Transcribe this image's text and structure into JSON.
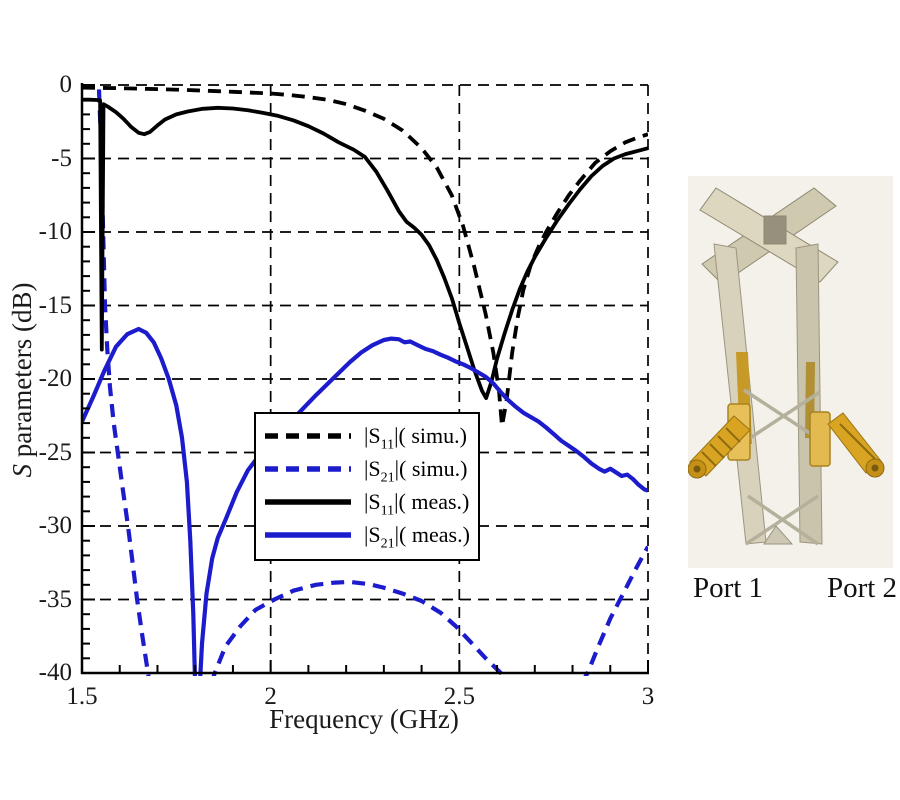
{
  "chart_data": {
    "type": "line",
    "xlabel": "Frequency (GHz)",
    "ylabel_italic": "S",
    "ylabel_rest": " parameters (dB)",
    "xlim": [
      1.5,
      3.0
    ],
    "ylim": [
      -40,
      0
    ],
    "grid": true,
    "legend_position": "lower-left-inside",
    "x_ticks": {
      "values": [
        1.5,
        2.0,
        2.5,
        3.0
      ],
      "labels": [
        "1.5",
        "2",
        "2.5",
        "3"
      ]
    },
    "y_ticks": {
      "values": [
        0,
        -5,
        -10,
        -15,
        -20,
        -25,
        -30,
        -35,
        -40
      ],
      "labels": [
        "0",
        "-5",
        "-10",
        "-15",
        "-20",
        "-25",
        "-30",
        "-35",
        "-40"
      ]
    },
    "x_minor_step": 0.1,
    "y_minor_step": 1,
    "series": [
      {
        "name": "S11-simulated",
        "legend_pre": "|S",
        "legend_sub": "11",
        "legend_post": "|( simu.)",
        "color": "#000000",
        "style": "dashed",
        "points": [
          [
            1.5,
            -0.18
          ],
          [
            1.6,
            -0.22
          ],
          [
            1.7,
            -0.28
          ],
          [
            1.8,
            -0.36
          ],
          [
            1.9,
            -0.46
          ],
          [
            2.0,
            -0.58
          ],
          [
            2.05,
            -0.68
          ],
          [
            2.1,
            -0.82
          ],
          [
            2.15,
            -1.0
          ],
          [
            2.2,
            -1.3
          ],
          [
            2.25,
            -1.75
          ],
          [
            2.3,
            -2.3
          ],
          [
            2.35,
            -3.1
          ],
          [
            2.4,
            -4.3
          ],
          [
            2.44,
            -5.6
          ],
          [
            2.48,
            -7.5
          ],
          [
            2.51,
            -9.6
          ],
          [
            2.54,
            -12.4
          ],
          [
            2.57,
            -15.6
          ],
          [
            2.59,
            -18.2
          ],
          [
            2.605,
            -20.8
          ],
          [
            2.613,
            -23.2
          ],
          [
            2.625,
            -21.5
          ],
          [
            2.64,
            -18.2
          ],
          [
            2.655,
            -15.8
          ],
          [
            2.67,
            -13.9
          ],
          [
            2.69,
            -12.2
          ],
          [
            2.71,
            -11.0
          ],
          [
            2.73,
            -10.0
          ],
          [
            2.76,
            -8.7
          ],
          [
            2.79,
            -7.5
          ],
          [
            2.82,
            -6.5
          ],
          [
            2.86,
            -5.3
          ],
          [
            2.9,
            -4.5
          ],
          [
            2.94,
            -3.9
          ],
          [
            2.97,
            -3.6
          ],
          [
            3.0,
            -3.35
          ]
        ]
      },
      {
        "name": "S21-simulated",
        "legend_pre": "|S",
        "legend_sub": "21",
        "legend_post": "|( simu.)",
        "color": "#1c1ccd",
        "style": "dashed",
        "points": [
          [
            1.545,
            -0.3
          ],
          [
            1.549,
            -3
          ],
          [
            1.553,
            -7
          ],
          [
            1.557,
            -11
          ],
          [
            1.561,
            -15
          ],
          [
            1.567,
            -18
          ],
          [
            1.574,
            -20.5
          ],
          [
            1.584,
            -23
          ],
          [
            1.595,
            -25
          ],
          [
            1.608,
            -27.5
          ],
          [
            1.622,
            -30
          ],
          [
            1.634,
            -32.5
          ],
          [
            1.646,
            -35
          ],
          [
            1.66,
            -37.5
          ],
          [
            1.675,
            -40
          ],
          [
            1.695,
            -43.5
          ],
          [
            1.73,
            -47
          ],
          [
            1.77,
            -46.5
          ],
          [
            1.81,
            -43
          ],
          [
            1.852,
            -40
          ],
          [
            1.88,
            -38.2
          ],
          [
            1.92,
            -36.8
          ],
          [
            1.96,
            -35.7
          ],
          [
            2.01,
            -35.0
          ],
          [
            2.06,
            -34.4
          ],
          [
            2.12,
            -34.0
          ],
          [
            2.17,
            -33.85
          ],
          [
            2.21,
            -33.8
          ],
          [
            2.26,
            -33.95
          ],
          [
            2.3,
            -34.2
          ],
          [
            2.35,
            -34.6
          ],
          [
            2.4,
            -35.1
          ],
          [
            2.45,
            -35.9
          ],
          [
            2.49,
            -36.8
          ],
          [
            2.53,
            -37.9
          ],
          [
            2.57,
            -39.0
          ],
          [
            2.61,
            -40
          ],
          [
            2.66,
            -42
          ],
          [
            2.72,
            -44
          ],
          [
            2.78,
            -42.5
          ],
          [
            2.84,
            -40
          ],
          [
            2.87,
            -38.1
          ],
          [
            2.9,
            -36.3
          ],
          [
            2.94,
            -34.3
          ],
          [
            2.97,
            -32.8
          ],
          [
            3.0,
            -31.4
          ]
        ]
      },
      {
        "name": "S11-measured",
        "legend_pre": "|S",
        "legend_sub": "11",
        "legend_post": "|( meas.)",
        "color": "#000000",
        "style": "solid",
        "points": [
          [
            1.5,
            -1.0
          ],
          [
            1.52,
            -1.0
          ],
          [
            1.54,
            -1.02
          ],
          [
            1.548,
            -1.05
          ],
          [
            1.5525,
            -18
          ],
          [
            1.557,
            -1.3
          ],
          [
            1.57,
            -1.5
          ],
          [
            1.59,
            -1.85
          ],
          [
            1.61,
            -2.3
          ],
          [
            1.63,
            -2.85
          ],
          [
            1.65,
            -3.25
          ],
          [
            1.665,
            -3.35
          ],
          [
            1.68,
            -3.2
          ],
          [
            1.7,
            -2.75
          ],
          [
            1.72,
            -2.35
          ],
          [
            1.75,
            -2.0
          ],
          [
            1.78,
            -1.8
          ],
          [
            1.82,
            -1.62
          ],
          [
            1.86,
            -1.55
          ],
          [
            1.9,
            -1.6
          ],
          [
            1.94,
            -1.72
          ],
          [
            1.98,
            -1.9
          ],
          [
            2.02,
            -2.1
          ],
          [
            2.06,
            -2.4
          ],
          [
            2.1,
            -2.8
          ],
          [
            2.14,
            -3.3
          ],
          [
            2.18,
            -3.9
          ],
          [
            2.22,
            -4.4
          ],
          [
            2.25,
            -4.9
          ],
          [
            2.28,
            -5.9
          ],
          [
            2.31,
            -7.2
          ],
          [
            2.34,
            -8.6
          ],
          [
            2.36,
            -9.3
          ],
          [
            2.38,
            -9.7
          ],
          [
            2.4,
            -10.2
          ],
          [
            2.42,
            -10.9
          ],
          [
            2.44,
            -11.9
          ],
          [
            2.46,
            -13.1
          ],
          [
            2.48,
            -14.5
          ],
          [
            2.5,
            -16.2
          ],
          [
            2.52,
            -17.8
          ],
          [
            2.54,
            -19.4
          ],
          [
            2.56,
            -20.8
          ],
          [
            2.571,
            -21.3
          ],
          [
            2.585,
            -20.2
          ],
          [
            2.6,
            -18.6
          ],
          [
            2.62,
            -16.9
          ],
          [
            2.64,
            -15.3
          ],
          [
            2.66,
            -13.9
          ],
          [
            2.68,
            -12.7
          ],
          [
            2.7,
            -11.7
          ],
          [
            2.73,
            -10.4
          ],
          [
            2.76,
            -9.2
          ],
          [
            2.79,
            -8.1
          ],
          [
            2.82,
            -7.1
          ],
          [
            2.85,
            -6.2
          ],
          [
            2.88,
            -5.5
          ],
          [
            2.91,
            -5.0
          ],
          [
            2.94,
            -4.7
          ],
          [
            2.97,
            -4.5
          ],
          [
            3.0,
            -4.3
          ]
        ]
      },
      {
        "name": "S21-measured",
        "legend_pre": "|S",
        "legend_sub": "21",
        "legend_post": "|( meas.)",
        "color": "#1c1ccd",
        "style": "solid",
        "points": [
          [
            1.5,
            -22.9
          ],
          [
            1.53,
            -21.2
          ],
          [
            1.56,
            -19.4
          ],
          [
            1.59,
            -17.8
          ],
          [
            1.62,
            -16.95
          ],
          [
            1.65,
            -16.6
          ],
          [
            1.67,
            -16.85
          ],
          [
            1.69,
            -17.5
          ],
          [
            1.71,
            -18.6
          ],
          [
            1.73,
            -20.0
          ],
          [
            1.75,
            -21.8
          ],
          [
            1.765,
            -24.0
          ],
          [
            1.778,
            -27.0
          ],
          [
            1.787,
            -31.0
          ],
          [
            1.795,
            -36.0
          ],
          [
            1.8,
            -41.0
          ],
          [
            1.806,
            -44.0
          ],
          [
            1.812,
            -41.0
          ],
          [
            1.818,
            -38.0
          ],
          [
            1.83,
            -34.6
          ],
          [
            1.845,
            -32.2
          ],
          [
            1.86,
            -30.8
          ],
          [
            1.88,
            -29.6
          ],
          [
            1.91,
            -27.7
          ],
          [
            1.94,
            -26.2
          ],
          [
            1.97,
            -25.2
          ],
          [
            2.0,
            -24.1
          ],
          [
            2.03,
            -23.4
          ],
          [
            2.06,
            -22.7
          ],
          [
            2.09,
            -21.9
          ],
          [
            2.12,
            -21.1
          ],
          [
            2.15,
            -20.35
          ],
          [
            2.18,
            -19.6
          ],
          [
            2.21,
            -18.85
          ],
          [
            2.24,
            -18.2
          ],
          [
            2.27,
            -17.7
          ],
          [
            2.3,
            -17.35
          ],
          [
            2.32,
            -17.25
          ],
          [
            2.34,
            -17.3
          ],
          [
            2.355,
            -17.5
          ],
          [
            2.37,
            -17.45
          ],
          [
            2.39,
            -17.7
          ],
          [
            2.41,
            -17.95
          ],
          [
            2.43,
            -18.1
          ],
          [
            2.45,
            -18.35
          ],
          [
            2.47,
            -18.55
          ],
          [
            2.49,
            -18.8
          ],
          [
            2.51,
            -19.0
          ],
          [
            2.53,
            -19.25
          ],
          [
            2.55,
            -19.55
          ],
          [
            2.57,
            -19.85
          ],
          [
            2.59,
            -20.3
          ],
          [
            2.61,
            -20.9
          ],
          [
            2.63,
            -21.45
          ],
          [
            2.65,
            -21.9
          ],
          [
            2.67,
            -22.3
          ],
          [
            2.69,
            -22.6
          ],
          [
            2.71,
            -22.9
          ],
          [
            2.73,
            -23.3
          ],
          [
            2.75,
            -23.75
          ],
          [
            2.77,
            -24.2
          ],
          [
            2.79,
            -24.55
          ],
          [
            2.81,
            -24.9
          ],
          [
            2.83,
            -25.3
          ],
          [
            2.85,
            -25.75
          ],
          [
            2.87,
            -26.1
          ],
          [
            2.885,
            -26.3
          ],
          [
            2.9,
            -26.1
          ],
          [
            2.915,
            -26.35
          ],
          [
            2.93,
            -26.6
          ],
          [
            2.945,
            -26.5
          ],
          [
            2.96,
            -26.8
          ],
          [
            2.975,
            -27.2
          ],
          [
            2.99,
            -27.5
          ],
          [
            3.0,
            -27.6
          ]
        ]
      }
    ]
  },
  "photo": {
    "caption_left": "Port 1",
    "caption_right": "Port 2"
  },
  "colors": {
    "curve_blue": "#1c1ccd",
    "curve_black": "#000000",
    "photo_background": "#f3f1ea",
    "metal": "#d2ccb5",
    "gold": "#d8a422"
  }
}
